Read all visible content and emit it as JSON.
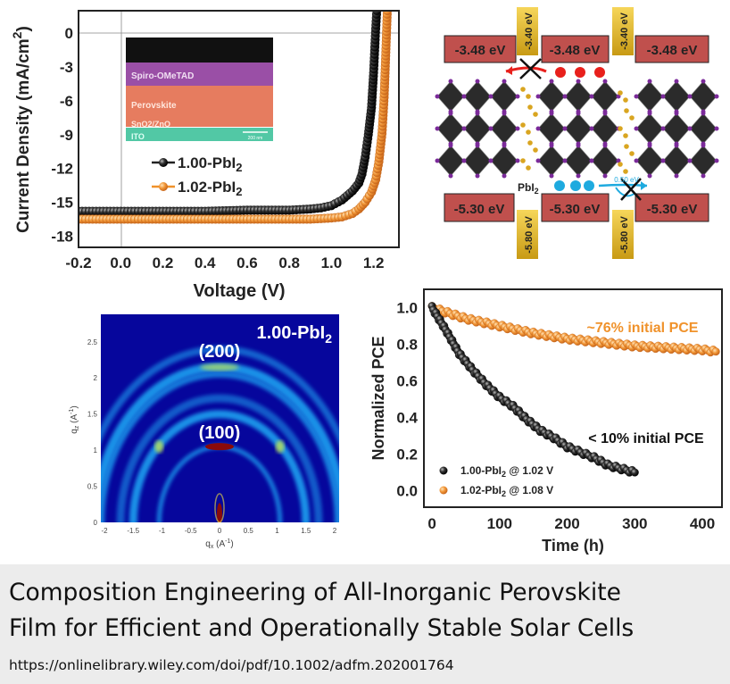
{
  "caption": {
    "title_line1": "Composition Engineering of All-Inorganic Perovskite",
    "title_line2": "Film for Efficient and Operationally Stable Solar Cells",
    "url": "https://onlinelibrary.wiley.com/doi/pdf/10.1002/adfm.202001764"
  },
  "band_diagram": {
    "cb_levels": [
      "-3.48 eV",
      "-3.48 eV",
      "-3.48 eV"
    ],
    "cb_barriers": [
      "-3.40 eV",
      "-3.40 eV"
    ],
    "vb_levels": [
      "-5.30 eV",
      "-5.30 eV",
      "-5.30 eV"
    ],
    "vb_barriers": [
      "-5.80 eV",
      "-5.80 eV"
    ],
    "pbi2_label": {
      "text": "PbI",
      "sub": "2"
    },
    "offset_label": "0.50 eV",
    "colors": {
      "level": "#c0504d",
      "barrier": "#f0c419",
      "electron": "#e8201c",
      "hole": "#1eaadf",
      "octahedra": "#2b2b2b",
      "iodide": "#7b2a9a",
      "pbi2": "#d9a520"
    }
  },
  "inset": {
    "layers": [
      "Spiro-OMeTAD",
      "Perovskite",
      "SnO2/ZnO",
      "ITO"
    ],
    "scale_bar": "200 nm",
    "colors": {
      "electrode": "#111111",
      "spiro": "#9a4fa6",
      "perovskite": "#e67c5f",
      "etl": "#d77a62",
      "ito": "#52c8a5"
    }
  },
  "chart_data": [
    {
      "type": "line",
      "xlabel": "Voltage (V)",
      "ylabel": {
        "text": "Current Density (mA/cm",
        "sup": "2",
        "end": ")"
      },
      "xlim": [
        -0.2,
        1.32
      ],
      "ylim": [
        -19,
        2
      ],
      "xticks": [
        "-0.2",
        "0.0",
        "0.2",
        "0.4",
        "0.6",
        "0.8",
        "1.0",
        "1.2"
      ],
      "xtick_values": [
        -0.2,
        0,
        0.2,
        0.4,
        0.6,
        0.8,
        1.0,
        1.2
      ],
      "yticks": [
        "0",
        "-3",
        "-6",
        "-9",
        "-12",
        "-15",
        "-18"
      ],
      "ytick_values": [
        0,
        -3,
        -6,
        -9,
        -12,
        -15,
        -18
      ],
      "legend_placement": "center-left",
      "series": [
        {
          "name": {
            "text": "1.00-PbI",
            "sub": "2"
          },
          "color": "#222222",
          "x": [
            -0.2,
            0.0,
            0.2,
            0.4,
            0.6,
            0.8,
            0.9,
            0.95,
            1.0,
            1.05,
            1.1,
            1.13,
            1.145,
            1.16,
            1.175,
            1.19,
            1.2,
            1.21,
            1.215
          ],
          "y": [
            -15.8,
            -15.8,
            -15.8,
            -15.8,
            -15.7,
            -15.7,
            -15.6,
            -15.5,
            -15.3,
            -14.8,
            -14.0,
            -13.3,
            -12.5,
            -11.0,
            -9.0,
            -6.6,
            -3.5,
            0.4,
            2.0
          ]
        },
        {
          "name": {
            "text": "1.02-PbI",
            "sub": "2"
          },
          "color": "#f0922b",
          "x": [
            -0.2,
            0.0,
            0.2,
            0.4,
            0.6,
            0.8,
            0.9,
            1.0,
            1.05,
            1.1,
            1.13,
            1.16,
            1.19,
            1.21,
            1.225,
            1.24,
            1.25,
            1.258,
            1.265
          ],
          "y": [
            -16.5,
            -16.5,
            -16.5,
            -16.5,
            -16.5,
            -16.5,
            -16.5,
            -16.4,
            -16.3,
            -16.0,
            -15.6,
            -15.0,
            -14.1,
            -13.0,
            -11.4,
            -8.9,
            -5.7,
            -1.7,
            2.0
          ]
        }
      ]
    },
    {
      "type": "heatmap",
      "title": {
        "text": "1.00-PbI",
        "sub": "2"
      },
      "xlabel": {
        "text": "q",
        "sub": "x",
        "unit": " (A",
        "sup": "-1",
        "end": ")"
      },
      "ylabel": {
        "text": "q",
        "sub": "z",
        "unit": " (A",
        "sup": "-1",
        "end": ")"
      },
      "xlim": [
        -2.1,
        2.1
      ],
      "ylim": [
        0,
        2.88
      ],
      "xticks": [
        "-2",
        "-1.5",
        "-1",
        "-0.5",
        "0",
        "0.5",
        "1",
        "1.5",
        "2"
      ],
      "xtick_values": [
        -2,
        -1.5,
        -1,
        -0.5,
        0,
        0.5,
        1,
        1.5,
        2
      ],
      "yticks": [
        "0",
        "0.5",
        "1",
        "1.5",
        "2",
        "2.5"
      ],
      "ytick_values": [
        0,
        0.5,
        1,
        1.5,
        2,
        2.5
      ],
      "annotations": [
        {
          "text": "(100)",
          "q": 1.05
        },
        {
          "text": "(200)",
          "q": 2.15
        }
      ],
      "rings_q": [
        1.05,
        1.5,
        1.72,
        2.05,
        2.15,
        2.4
      ],
      "colors": {
        "background": "#06069c",
        "ring": "#1fa0f0",
        "hot": "#8a0a0a",
        "warm": "#d8f040"
      }
    },
    {
      "type": "scatter",
      "xlabel": "Time (h)",
      "ylabel": "Normalized PCE",
      "xlim": [
        -12,
        429
      ],
      "ylim": [
        -0.09,
        1.1
      ],
      "xticks": [
        "0",
        "100",
        "200",
        "300",
        "400"
      ],
      "xtick_values": [
        0,
        100,
        200,
        300,
        400
      ],
      "yticks": [
        "0.0",
        "0.2",
        "0.4",
        "0.6",
        "0.8",
        "1.0"
      ],
      "ytick_values": [
        0,
        0.2,
        0.4,
        0.6,
        0.8,
        1.0
      ],
      "legend_placement": "bottom-left",
      "annotations": [
        {
          "text": "~76% initial PCE",
          "color": "#f0922b"
        },
        {
          "text": "< 10% initial PCE",
          "color": "#111111"
        }
      ],
      "series": [
        {
          "name": {
            "text": "1.00-PbI",
            "sub": "2",
            "end": " @ 1.02 V"
          },
          "color": "#222222",
          "x": [
            0,
            20,
            40,
            60,
            80,
            100,
            120,
            140,
            160,
            180,
            200,
            220,
            240,
            260,
            280,
            300
          ],
          "y": [
            1.0,
            0.88,
            0.75,
            0.66,
            0.58,
            0.51,
            0.46,
            0.39,
            0.33,
            0.29,
            0.24,
            0.21,
            0.18,
            0.14,
            0.12,
            0.1
          ]
        },
        {
          "name": {
            "text": "1.02-PbI",
            "sub": "2",
            "end": " @ 1.08 V"
          },
          "color": "#f0922b",
          "x": [
            0,
            50,
            100,
            150,
            200,
            250,
            300,
            350,
            400,
            420
          ],
          "y": [
            1.0,
            0.94,
            0.9,
            0.86,
            0.83,
            0.81,
            0.79,
            0.78,
            0.77,
            0.76
          ]
        }
      ]
    }
  ]
}
